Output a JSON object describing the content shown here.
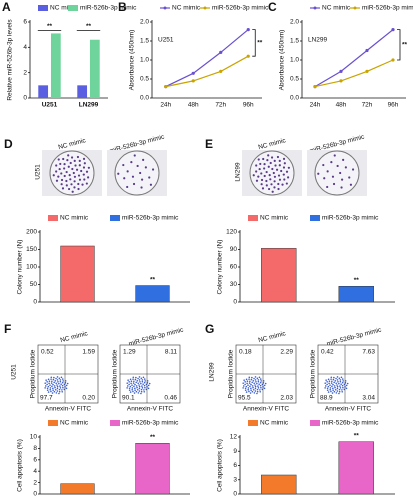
{
  "chart_data": [
    {
      "type": "bar",
      "panel": "A",
      "y_label": "Relative miR-526b-3p levels",
      "categories": [
        "U251",
        "LN299"
      ],
      "series": [
        {
          "name": "NC mimic",
          "color": "#5a5ee0",
          "values": [
            1,
            1
          ]
        },
        {
          "name": "miR-526b-3p mimic",
          "color": "#6fd49c",
          "values": [
            5.1,
            4.6
          ]
        }
      ],
      "ylim": [
        0,
        6
      ],
      "yticks": [
        0,
        2,
        4,
        6
      ],
      "annotations": [
        "**",
        "**"
      ]
    },
    {
      "type": "line",
      "panel": "B",
      "inner_label": "U251",
      "y_label": "Absorbance (450nm)",
      "categories": [
        "24h",
        "48h",
        "72h",
        "96h"
      ],
      "series": [
        {
          "name": "NC mimic",
          "color": "#6a4fd0",
          "values": [
            0.3,
            0.65,
            1.2,
            1.8
          ]
        },
        {
          "name": "miR-526b-3p mimic",
          "color": "#c9a400",
          "values": [
            0.3,
            0.45,
            0.7,
            1.1
          ]
        }
      ],
      "ylim": [
        0,
        2
      ],
      "yticks": [
        {
          "value": 0,
          "label": "0.0"
        },
        0.5,
        {
          "value": 1,
          "label": "1.0"
        },
        1.5,
        {
          "value": 2,
          "label": "2.0"
        }
      ],
      "annotations": [
        "**"
      ]
    },
    {
      "type": "line",
      "panel": "C",
      "inner_label": "LN299",
      "y_label": "Absorbance (450nm)",
      "categories": [
        "24h",
        "48h",
        "72h",
        "96h"
      ],
      "series": [
        {
          "name": "NC mimic",
          "color": "#6a4fd0",
          "values": [
            0.3,
            0.7,
            1.25,
            1.8
          ]
        },
        {
          "name": "miR-526b-3p mimic",
          "color": "#c9a400",
          "values": [
            0.3,
            0.45,
            0.7,
            1.0
          ]
        }
      ],
      "ylim": [
        0,
        2
      ],
      "yticks": [
        {
          "value": 0,
          "label": "0.0"
        },
        0.5,
        {
          "value": 1,
          "label": "1.0"
        },
        1.5,
        {
          "value": 2,
          "label": "2.0"
        }
      ],
      "annotations": [
        "**"
      ]
    },
    {
      "type": "bar",
      "y_label": "Colony number (N)",
      "series": [
        {
          "name": "NC mimic",
          "color": "#f46a6a",
          "values": [
            160
          ]
        },
        {
          "name": "miR-526b-3p mimic",
          "color": "#2f6fe0",
          "values": [
            47
          ]
        }
      ],
      "ylim": [
        0,
        200
      ],
      "yticks": [
        0,
        50,
        100,
        150,
        200
      ],
      "annotations": [
        "**"
      ]
    },
    {
      "type": "bar",
      "y_label": "Colony number (N)",
      "series": [
        {
          "name": "NC mimic",
          "color": "#f46a6a",
          "values": [
            92
          ]
        },
        {
          "name": "miR-526b-3p mimic",
          "color": "#2f6fe0",
          "values": [
            27
          ]
        }
      ],
      "ylim": [
        0,
        120
      ],
      "yticks": [
        0,
        30,
        60,
        90,
        120
      ],
      "annotations": [
        "**"
      ]
    },
    {
      "type": "bar",
      "y_label": "Cell apoptosis (%)",
      "series": [
        {
          "name": "NC mimic",
          "color": "#f27a2a",
          "values": [
            1.8
          ]
        },
        {
          "name": "miR-526b-3p mimic",
          "color": "#e866c8",
          "values": [
            8.9
          ]
        }
      ],
      "ylim": [
        0,
        10
      ],
      "yticks": [
        0,
        2,
        4,
        6,
        8,
        10
      ],
      "annotations": [
        "**"
      ]
    },
    {
      "type": "bar",
      "y_label": "Cell apoptosis (%)",
      "series": [
        {
          "name": "NC mimic",
          "color": "#f27a2a",
          "values": [
            4
          ]
        },
        {
          "name": "miR-526b-3p mimic",
          "color": "#e866c8",
          "values": [
            11
          ]
        }
      ],
      "ylim": [
        0,
        12
      ],
      "yticks": [
        0,
        3,
        6,
        9,
        12
      ],
      "annotations": [
        "**"
      ]
    }
  ],
  "colony_panels": [
    {
      "panel": "D",
      "side_label": "U251",
      "titles": [
        "NC mimic",
        "miR-526b-3p mimic"
      ]
    },
    {
      "panel": "E",
      "side_label": "LN299",
      "titles": [
        "NC mimic",
        "miR-526b-3p mimic"
      ]
    }
  ],
  "flow_panels": [
    {
      "panel": "F",
      "side_label": "U251",
      "y_label": "Propidium Iodide",
      "x_label": "Annexin-V FITC",
      "plots": [
        {
          "title": "NC mimic",
          "quadrants": [
            "0.52",
            "1.59",
            "97.7",
            "0.20"
          ]
        },
        {
          "title": "miR-526b-3p mimic",
          "quadrants": [
            "1.29",
            "8.11",
            "90.1",
            "0.46"
          ]
        }
      ]
    },
    {
      "panel": "G",
      "side_label": "LN299",
      "y_label": "Propidium Iodide",
      "x_label": "Annexin-V FITC",
      "plots": [
        {
          "title": "NC mimic",
          "quadrants": [
            "0.18",
            "2.29",
            "95.5",
            "2.03"
          ]
        },
        {
          "title": "miR-526b-3p mimic",
          "quadrants": [
            "0.42",
            "7.63",
            "88.9",
            "3.04"
          ]
        }
      ]
    }
  ]
}
